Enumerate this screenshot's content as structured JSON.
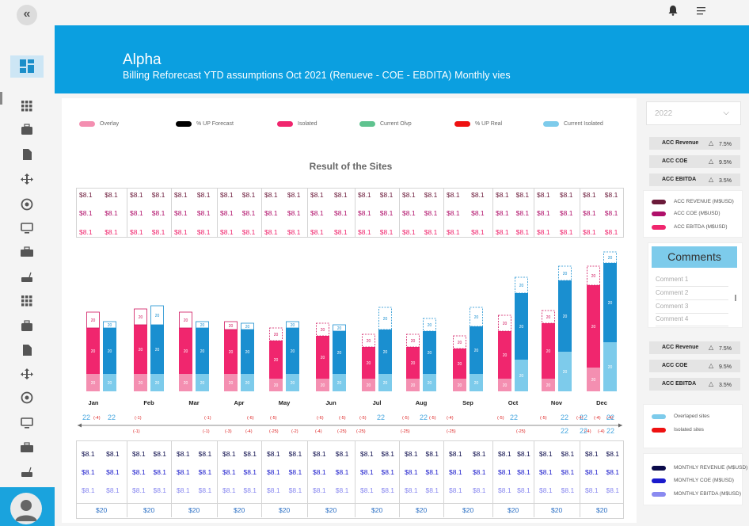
{
  "header": {
    "title": "Alpha",
    "subtitle": "Billing Reforecast YTD assumptions Oct 2021 (Renueve - COE - EBDITA) Monthly vies"
  },
  "sidebar": {
    "icons": [
      "apps-icon",
      "briefcase-icon",
      "document-icon",
      "move-icon",
      "support-icon",
      "monitor-icon",
      "toolbox-icon",
      "router-icon",
      "list-icon",
      "sync-icon",
      "laptop-icon",
      "bar-chart-icon",
      "clipboard-icon",
      "user-settings-icon",
      "help-icon",
      "notes-icon"
    ]
  },
  "legend": [
    {
      "label": "Overlay",
      "color": "#f48fb1"
    },
    {
      "label": "% UP Forecast",
      "color": "#000000"
    },
    {
      "label": "Isolated",
      "color": "#f0266e"
    },
    {
      "label": "Current Olvp",
      "color": "#5fc38f"
    },
    {
      "label": "% UP Real",
      "color": "#ee1111"
    },
    {
      "label": "Current Isolated",
      "color": "#7dcbeb"
    }
  ],
  "chart_data": {
    "type": "bar",
    "title": "Result of the Sites",
    "categories": [
      "Jan",
      "Feb",
      "Mar",
      "Apr",
      "May",
      "Jun",
      "Jul",
      "Aug",
      "Sep",
      "Oct",
      "Nov",
      "Dec"
    ],
    "series": [
      {
        "name": "Isolated",
        "color": "#f0266e",
        "values": [
          20,
          20,
          20,
          20,
          20,
          20,
          20,
          20,
          20,
          20,
          20,
          20
        ],
        "top_labels": [
          20,
          20,
          20,
          20,
          20,
          20,
          20,
          20,
          20,
          20,
          20,
          20
        ],
        "base_labels": [
          20,
          20,
          20,
          20,
          20,
          20,
          20,
          20,
          20,
          20,
          20,
          20
        ]
      },
      {
        "name": "Current Isolated",
        "color": "#1a8fd0",
        "values": [
          20,
          20,
          20,
          20,
          20,
          20,
          20,
          20,
          20,
          20,
          20,
          20
        ],
        "top_labels": [
          20,
          20,
          20,
          20,
          20,
          20,
          20,
          20,
          20,
          20,
          20,
          20
        ],
        "base_labels": [
          20,
          20,
          20,
          20,
          20,
          20,
          20,
          20,
          20,
          20,
          20,
          20
        ]
      }
    ],
    "top_table": {
      "rows": [
        [
          "$8.1",
          "$8.1",
          "$8.1",
          "$8.1",
          "$8.1",
          "$8.1",
          "$8.1",
          "$8.1",
          "$8.1",
          "$8.1",
          "$8.1",
          "$8.1",
          "$8.1",
          "$8.1",
          "$8.1",
          "$8.1",
          "$8.1",
          "$8.1",
          "$8.1",
          "$8.1",
          "$8.1",
          "$8.1",
          "$8.1",
          "$8.1"
        ],
        [
          "$8.1",
          "$8.1",
          "$8.1",
          "$8.1",
          "$8.1",
          "$8.1",
          "$8.1",
          "$8.1",
          "$8.1",
          "$8.1",
          "$8.1",
          "$8.1",
          "$8.1",
          "$8.1",
          "$8.1",
          "$8.1",
          "$8.1",
          "$8.1",
          "$8.1",
          "$8.1",
          "$8.1",
          "$8.1",
          "$8.1",
          "$8.1"
        ],
        [
          "$8.1",
          "$8.1",
          "$8.1",
          "$8.1",
          "$8.1",
          "$8.1",
          "$8.1",
          "$8.1",
          "$8.1",
          "$8.1",
          "$8.1",
          "$8.1",
          "$8.1",
          "$8.1",
          "$8.1",
          "$8.1",
          "$8.1",
          "$8.1",
          "$8.1",
          "$8.1",
          "$8.1",
          "$8.1",
          "$8.1",
          "$8.1"
        ]
      ],
      "row_colors": [
        "#6b1a3a",
        "#b0106a",
        "#f0266e"
      ]
    },
    "bottom_table": {
      "rows": [
        [
          "$8.1",
          "$8.1",
          "$8.1",
          "$8.1",
          "$8.1",
          "$8.1",
          "$8.1",
          "$8.1",
          "$8.1",
          "$8.1",
          "$8.1",
          "$8.1",
          "$8.1",
          "$8.1",
          "$8.1",
          "$8.1",
          "$8.1",
          "$8.1",
          "$8.1",
          "$8.1",
          "$8.1",
          "$8.1",
          "$8.1",
          "$8.1"
        ],
        [
          "$8.1",
          "$8.1",
          "$8.1",
          "$8.1",
          "$8.1",
          "$8.1",
          "$8.1",
          "$8.1",
          "$8.1",
          "$8.1",
          "$8.1",
          "$8.1",
          "$8.1",
          "$8.1",
          "$8.1",
          "$8.1",
          "$8.1",
          "$8.1",
          "$8.1",
          "$8.1",
          "$8.1",
          "$8.1",
          "$8.1",
          "$8.1"
        ],
        [
          "$8.1",
          "$8.1",
          "$8.1",
          "$8.1",
          "$8.1",
          "$8.1",
          "$8.1",
          "$8.1",
          "$8.1",
          "$8.1",
          "$8.1",
          "$8.1",
          "$8.1",
          "$8.1",
          "$8.1",
          "$8.1",
          "$8.1",
          "$8.1",
          "$8.1",
          "$8.1",
          "$8.1",
          "$8.1",
          "$8.1",
          "$8.1"
        ]
      ],
      "row_colors": [
        "#0a0a4a",
        "#1a1acc",
        "#8a8af0"
      ],
      "totals": [
        "$20",
        "$20",
        "$20",
        "$20",
        "$20",
        "$20",
        "$20",
        "$20",
        "$20",
        "$20",
        "$20",
        "$20"
      ]
    },
    "notes_row1": [
      "(-4)",
      "(-1)",
      "(-1)",
      "(-6)",
      "(-5)",
      "(-6)",
      "(-5)",
      "(-5)",
      "(-5)",
      "(-5)",
      "(-4)",
      "(-5)",
      "(-5)",
      "(-4)",
      "(-4)",
      "(-4)"
    ],
    "notes_row2": [
      "(-1)",
      "(-1)",
      "(-3)",
      "(-4)",
      "(-25)",
      "(-2)",
      "(-4)",
      "(-25)",
      "(-25)",
      "(-25)",
      "(-25)",
      "(-25)",
      "(-4)",
      "(-4)"
    ],
    "bubble_values": [
      "22",
      "22",
      "22",
      "22",
      "22",
      "22",
      "22",
      "22",
      "22",
      "22",
      "22",
      "22"
    ]
  },
  "right_panel": {
    "year": "2022",
    "acc_top": [
      {
        "label": "ACC Revenue",
        "value": "7.5%"
      },
      {
        "label": "ACC COE",
        "value": "9.5%"
      },
      {
        "label": "ACC EBITDA",
        "value": "3.5%"
      }
    ],
    "acc_legend": [
      {
        "label": "ACC REVENUE (M$USD)",
        "color": "#6b1a3a"
      },
      {
        "label": "ACC COE (M$USD)",
        "color": "#b0106a"
      },
      {
        "label": "ACC EBITDA (M$USD)",
        "color": "#f0266e"
      }
    ],
    "comments_title": "Comments",
    "comments": [
      "Comment 1",
      "Comment 2",
      "Comment 3",
      "Comment 4"
    ],
    "acc_bottom": [
      {
        "label": "ACC Revenue",
        "value": "7.5%"
      },
      {
        "label": "ACC COE",
        "value": "9.5%"
      },
      {
        "label": "ACC EBITDA",
        "value": "3.5%"
      }
    ],
    "site_legend": [
      {
        "label": "Overlaped sites",
        "color": "#7dcbeb"
      },
      {
        "label": "Isolated sites",
        "color": "#ee1111"
      }
    ],
    "monthly_legend": [
      {
        "label": "MONTHLY REVENUE (M$USD)",
        "color": "#0a0a4a"
      },
      {
        "label": "MONTHLY COE (M$USD)",
        "color": "#1a1acc"
      },
      {
        "label": "MONTHLY EBITDA (M$USD)",
        "color": "#8a8af0"
      }
    ]
  }
}
